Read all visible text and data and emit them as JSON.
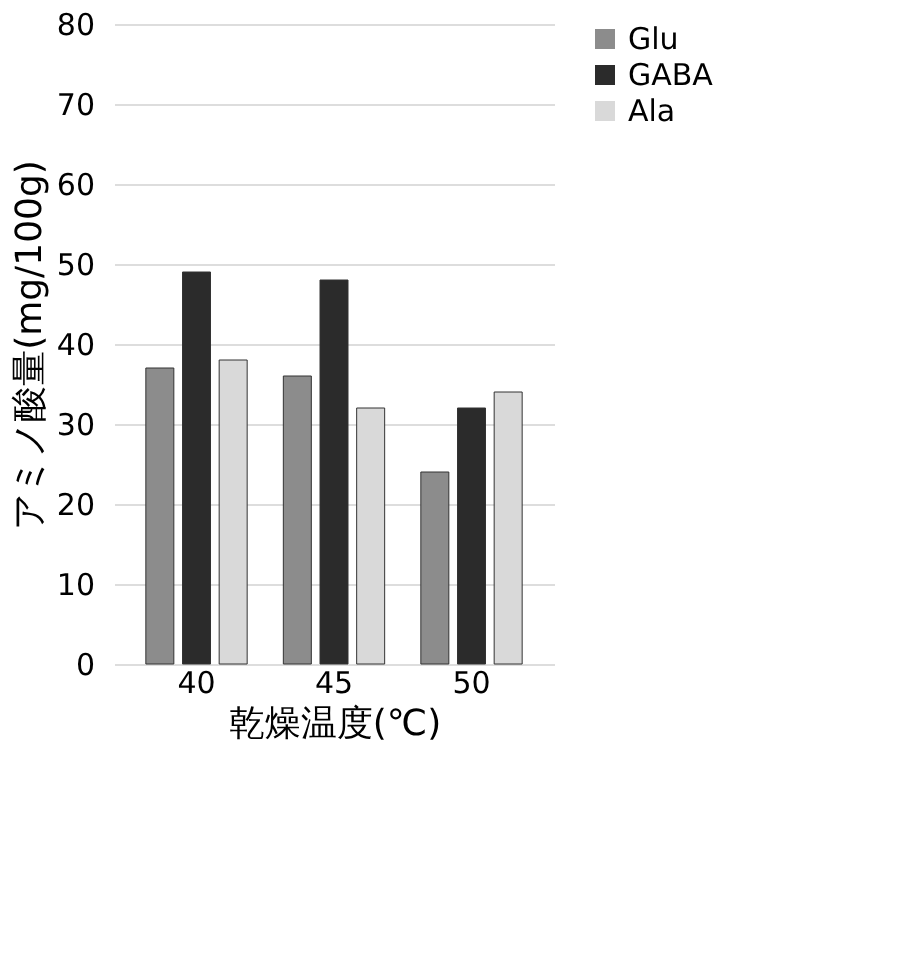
{
  "chart_data": {
    "type": "bar",
    "xlabel": "乾燥温度(℃)",
    "ylabel": "アミノ酸量(mg/100g)",
    "categories": [
      "40",
      "45",
      "50"
    ],
    "series": [
      {
        "name": "Glu",
        "color": "#8c8c8c",
        "values": [
          37,
          36,
          24
        ]
      },
      {
        "name": "GABA",
        "color": "#2b2b2b",
        "values": [
          49,
          48,
          32
        ]
      },
      {
        "name": "Ala",
        "color": "#d9d9d9",
        "values": [
          38,
          32,
          34
        ]
      }
    ],
    "ylim": [
      0,
      80
    ],
    "yticks": [
      0,
      10,
      20,
      30,
      40,
      50,
      60,
      70,
      80
    ],
    "grid": "y",
    "legend": "right"
  }
}
